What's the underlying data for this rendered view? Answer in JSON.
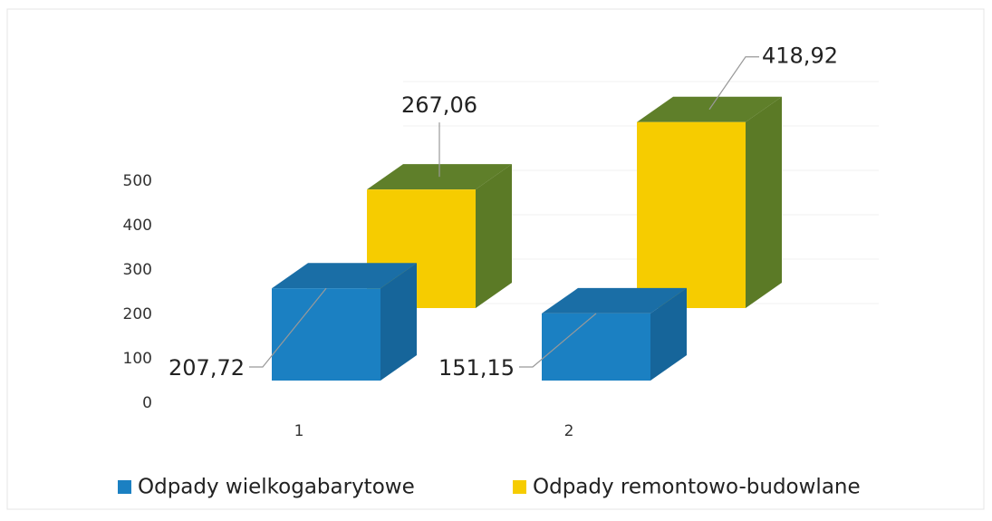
{
  "chart_data": {
    "type": "bar3d",
    "categories": [
      "1",
      "2"
    ],
    "series": [
      {
        "name": "Odpady wielkogabarytowe",
        "color": "#1b80c2",
        "values": [
          207.72,
          151.15
        ],
        "value_labels": [
          "207,72",
          "151,15"
        ]
      },
      {
        "name": "Odpady remontowo-budowlane",
        "color": "#f6cc00",
        "values": [
          267.06,
          418.92
        ],
        "value_labels": [
          "267,06",
          "418,92"
        ]
      }
    ],
    "ylim": [
      0,
      500
    ],
    "yticks": [
      0,
      100,
      200,
      300,
      400,
      500
    ],
    "grid": true,
    "legend": "bottom"
  }
}
